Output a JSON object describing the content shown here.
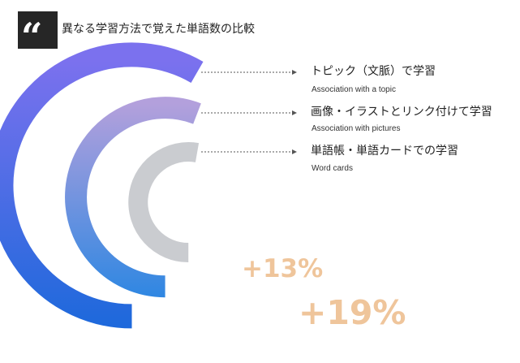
{
  "title": "異なる学習方法で覚えた単語数の比較",
  "quote_icon": "quote-icon",
  "colors": {
    "quote_box": "#262626",
    "leader_line": "#555555",
    "percent_text": "#EFC59B"
  },
  "chart_data": {
    "type": "radial-bar",
    "title": "異なる学習方法で覚えた単語数の比較",
    "series": [
      {
        "name": "トピック（文脈）で学習",
        "subtitle": "Association with a topic",
        "gradient": [
          "#7B71EE",
          "#1668DA"
        ]
      },
      {
        "name": "画像・イラストとリンク付けて学習",
        "subtitle": "Association with pictures",
        "gradient": [
          "#B3A0DC",
          "#2A86E2"
        ]
      },
      {
        "name": "単語帳・単語カードでの学習",
        "subtitle": "Word cards",
        "gradient": [
          "#CACCD0",
          "#CACCD0"
        ]
      }
    ],
    "annotations": [
      "+19%",
      "+13%"
    ]
  }
}
